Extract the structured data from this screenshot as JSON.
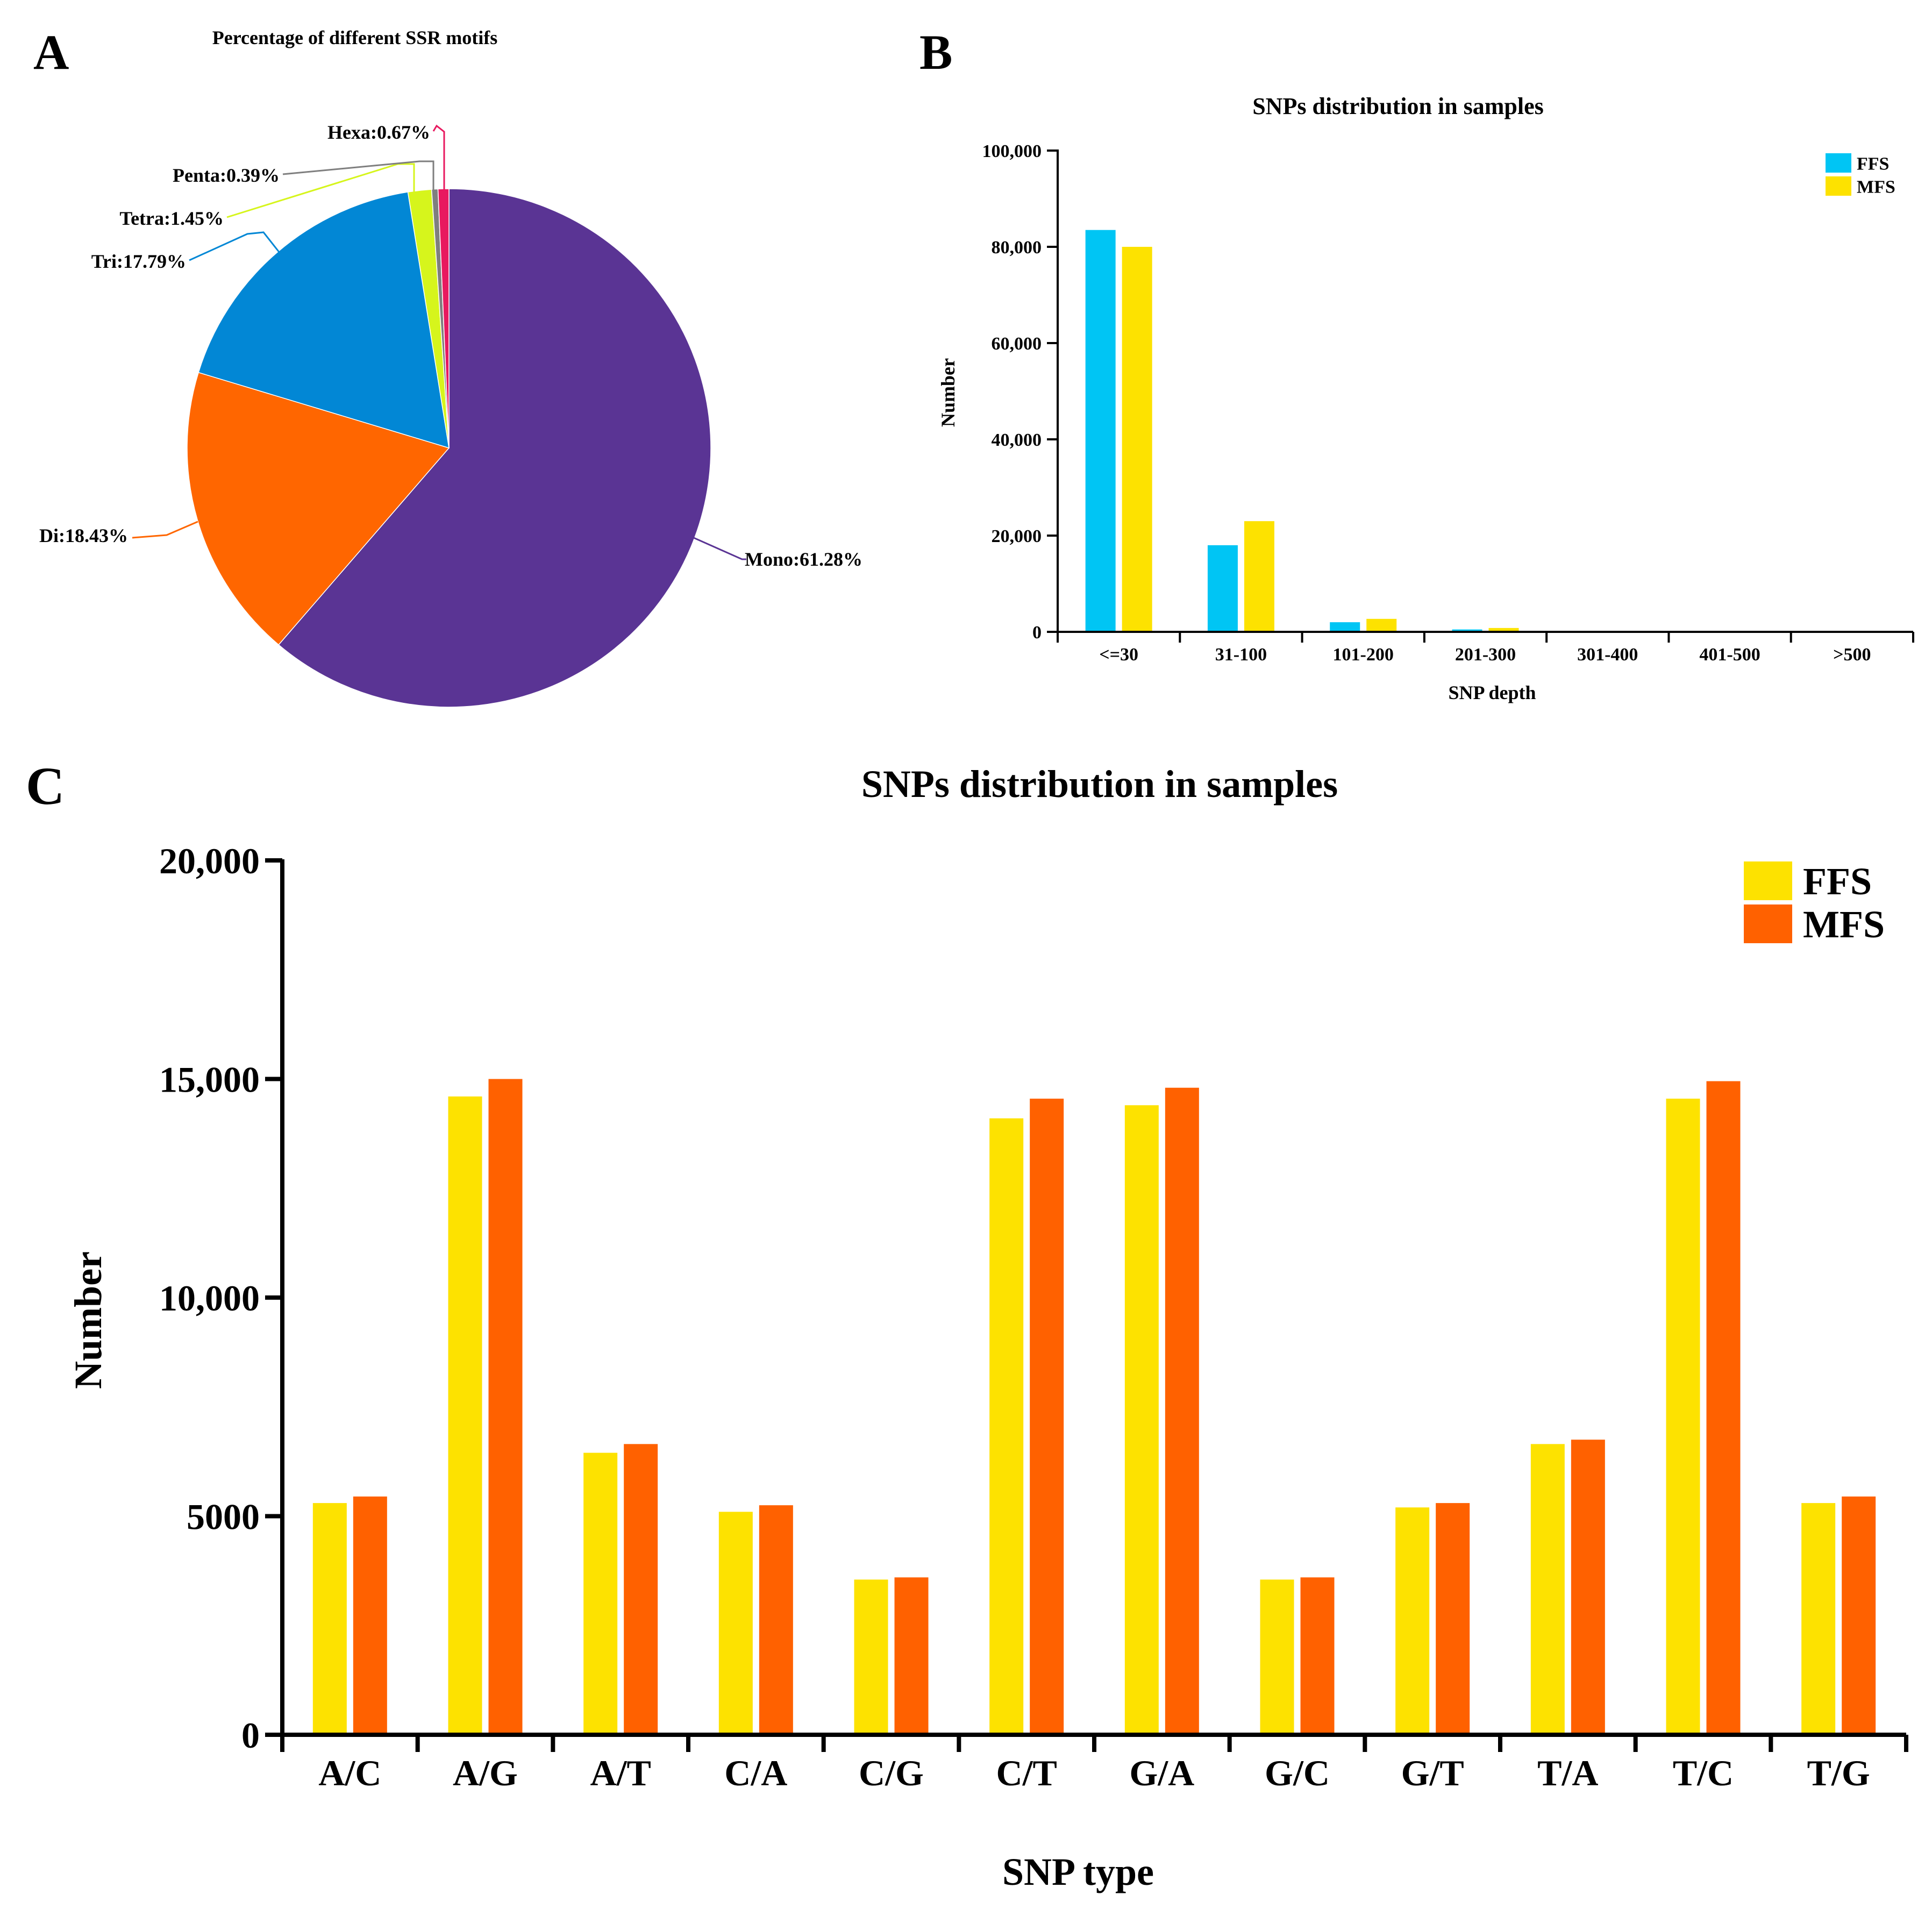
{
  "panels": {
    "a": {
      "letter": "A"
    },
    "b": {
      "letter": "B"
    },
    "c": {
      "letter": "C"
    }
  },
  "chart_data": [
    {
      "type": "pie",
      "title": "Percentage of different SSR motifs",
      "slices": [
        {
          "name": "Mono",
          "value": 61.28,
          "label": "Mono:61.28%",
          "color": "#5a3494"
        },
        {
          "name": "Di",
          "value": 18.43,
          "label": "Di:18.43%",
          "color": "#ff6600"
        },
        {
          "name": "Tri",
          "value": 17.79,
          "label": "Tri:17.79%",
          "color": "#0287d5"
        },
        {
          "name": "Tetra",
          "value": 1.45,
          "label": "Tetra:1.45%",
          "color": "#d6f51c"
        },
        {
          "name": "Penta",
          "value": 0.39,
          "label": "Penta:0.39%",
          "color": "#7f7f7f"
        },
        {
          "name": "Hexa",
          "value": 0.67,
          "label": "Hexa:0.67%",
          "color": "#e8195f"
        }
      ]
    },
    {
      "type": "bar",
      "title": "SNPs distribution in samples",
      "xlabel": "SNP depth",
      "ylabel": "Number",
      "ylim": [
        0,
        100000
      ],
      "yticks": [
        0,
        20000,
        40000,
        60000,
        80000,
        100000
      ],
      "ytick_labels": [
        "0",
        "20,000",
        "40,000",
        "60,000",
        "80,000",
        "100,000"
      ],
      "categories": [
        "<=30",
        "31-100",
        "101-200",
        "201-300",
        "301-400",
        "401-500",
        ">500"
      ],
      "series": [
        {
          "name": "FFS",
          "color": "#00c5f4",
          "values": [
            83500,
            18000,
            2000,
            500,
            100,
            50,
            30
          ]
        },
        {
          "name": "MFS",
          "color": "#fde200",
          "values": [
            80000,
            23000,
            2700,
            800,
            150,
            80,
            50
          ]
        }
      ],
      "legend": "top-right"
    },
    {
      "type": "bar",
      "title": "SNPs distribution in samples",
      "xlabel": "SNP type",
      "ylabel": "Number",
      "ylim": [
        0,
        20000
      ],
      "yticks": [
        0,
        5000,
        10000,
        15000,
        20000
      ],
      "ytick_labels": [
        "0",
        "5000",
        "10,000",
        "15,000",
        "20,000"
      ],
      "categories": [
        "A/C",
        "A/G",
        "A/T",
        "C/A",
        "C/G",
        "C/T",
        "G/A",
        "G/C",
        "G/T",
        "T/A",
        "T/C",
        "T/G"
      ],
      "series": [
        {
          "name": "FFS",
          "color": "#fde200",
          "values": [
            5300,
            14600,
            6450,
            5100,
            3550,
            14100,
            14400,
            3550,
            5200,
            6650,
            14550,
            5300
          ]
        },
        {
          "name": "MFS",
          "color": "#ff6100",
          "values": [
            5450,
            15000,
            6650,
            5250,
            3600,
            14550,
            14800,
            3600,
            5300,
            6750,
            14950,
            5450
          ]
        }
      ],
      "legend": "top-right"
    }
  ]
}
